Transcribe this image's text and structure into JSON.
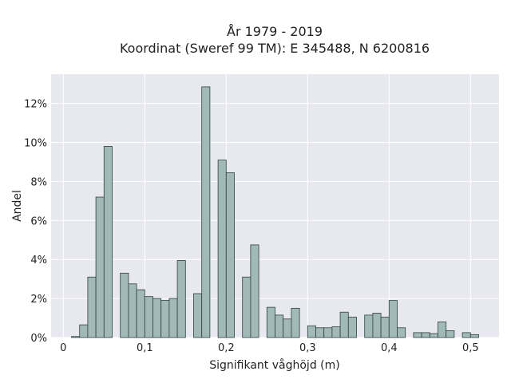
{
  "chart_data": {
    "type": "bar",
    "title": "År 1979 - 2019",
    "subtitle": "Koordinat (Sweref 99 TM): E 345488, N 6200816",
    "xlabel": "Signifikant våghöjd (m)",
    "ylabel": "Andel",
    "xlim": [
      -0.015,
      0.535
    ],
    "ylim": [
      0,
      13.5
    ],
    "x_ticks": [
      0,
      0.1,
      0.2,
      0.3,
      0.4,
      0.5
    ],
    "x_tick_labels": [
      "0",
      "0,1",
      "0,2",
      "0,3",
      "0,4",
      "0,5"
    ],
    "y_ticks": [
      0,
      2,
      4,
      6,
      8,
      10,
      12
    ],
    "y_tick_labels": [
      "0%",
      "2%",
      "4%",
      "6%",
      "8%",
      "10%",
      "12%"
    ],
    "bin_width": 0.01,
    "bin_starts": [
      0.01,
      0.02,
      0.03,
      0.04,
      0.05,
      0.07,
      0.08,
      0.09,
      0.1,
      0.11,
      0.12,
      0.13,
      0.14,
      0.16,
      0.17,
      0.19,
      0.2,
      0.22,
      0.23,
      0.25,
      0.26,
      0.27,
      0.28,
      0.3,
      0.31,
      0.32,
      0.33,
      0.34,
      0.35,
      0.37,
      0.38,
      0.39,
      0.4,
      0.41,
      0.43,
      0.44,
      0.45,
      0.46,
      0.47,
      0.49,
      0.5
    ],
    "values": [
      0.05,
      0.65,
      3.1,
      7.2,
      9.8,
      3.3,
      2.75,
      2.45,
      2.1,
      2.0,
      1.9,
      2.0,
      3.95,
      2.25,
      12.85,
      9.1,
      8.45,
      3.1,
      4.75,
      1.55,
      1.15,
      0.95,
      1.5,
      0.6,
      0.5,
      0.5,
      0.55,
      1.3,
      1.05,
      1.15,
      1.25,
      1.05,
      1.9,
      0.5,
      0.25,
      0.25,
      0.2,
      0.8,
      0.35,
      0.25,
      0.15
    ],
    "grid": true,
    "colors": {
      "bar_fill": "#a2b9b9",
      "bar_edge": "#2f4040",
      "plot_background": "#e8e8f1",
      "grid": "#ffffff"
    }
  }
}
